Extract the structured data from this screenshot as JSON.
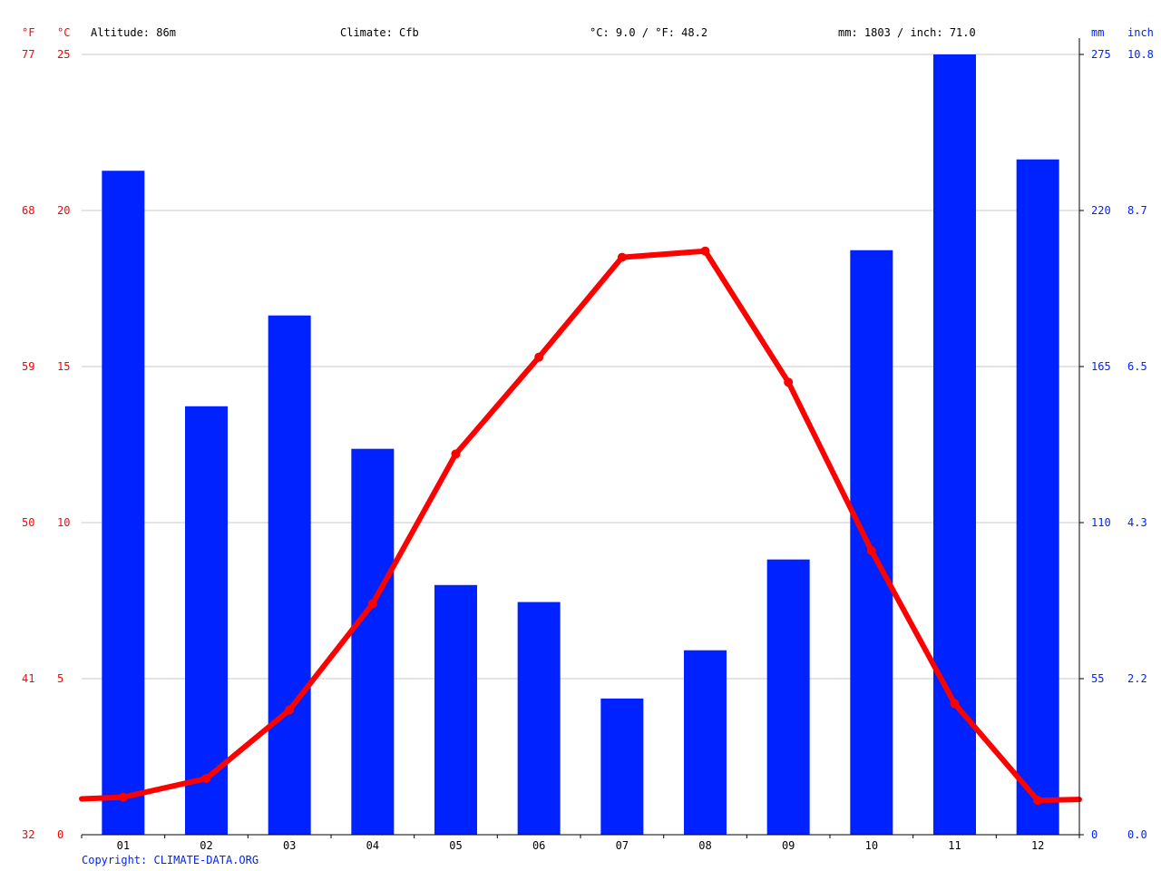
{
  "header": {
    "left_unit_f": "°F",
    "left_unit_c": "°C",
    "right_unit_mm": "mm",
    "right_unit_inch": "inch",
    "altitude": "Altitude: 86m",
    "climate": "Climate: Cfb",
    "temperature": "°C: 9.0 / °F: 48.2",
    "precipitation": "mm: 1803 / inch: 71.0"
  },
  "copyright": "Copyright: CLIMATE-DATA.ORG",
  "colors": {
    "temperature": "#ff0000",
    "precipitation": "#0022ff",
    "grid": "#c8c8c8"
  },
  "chart_data": {
    "type": "bar",
    "categories": [
      "01",
      "02",
      "03",
      "04",
      "05",
      "06",
      "07",
      "08",
      "09",
      "10",
      "11",
      "12"
    ],
    "series": [
      {
        "name": "mm",
        "type": "bar",
        "axis": "right",
        "values": [
          234,
          151,
          183,
          136,
          88,
          82,
          48,
          65,
          97,
          206,
          275,
          238
        ]
      },
      {
        "name": "°C",
        "type": "line",
        "axis": "left",
        "values": [
          1.2,
          1.8,
          4.0,
          7.4,
          12.2,
          15.3,
          18.5,
          18.7,
          14.5,
          9.1,
          4.2,
          1.1
        ]
      }
    ],
    "y_left_celsius": {
      "ticks": [
        "0",
        "5",
        "10",
        "15",
        "20",
        "25"
      ],
      "range": [
        0,
        25
      ]
    },
    "y_left_fahrenheit": {
      "ticks": [
        "32",
        "41",
        "50",
        "59",
        "68",
        "77"
      ]
    },
    "y_right_mm": {
      "ticks": [
        "0",
        "55",
        "110",
        "165",
        "220",
        "275"
      ],
      "range": [
        0,
        275
      ]
    },
    "y_right_inch": {
      "ticks": [
        "0.0",
        "2.2",
        "4.3",
        "6.5",
        "8.7",
        "10.8"
      ]
    },
    "grid": true
  }
}
